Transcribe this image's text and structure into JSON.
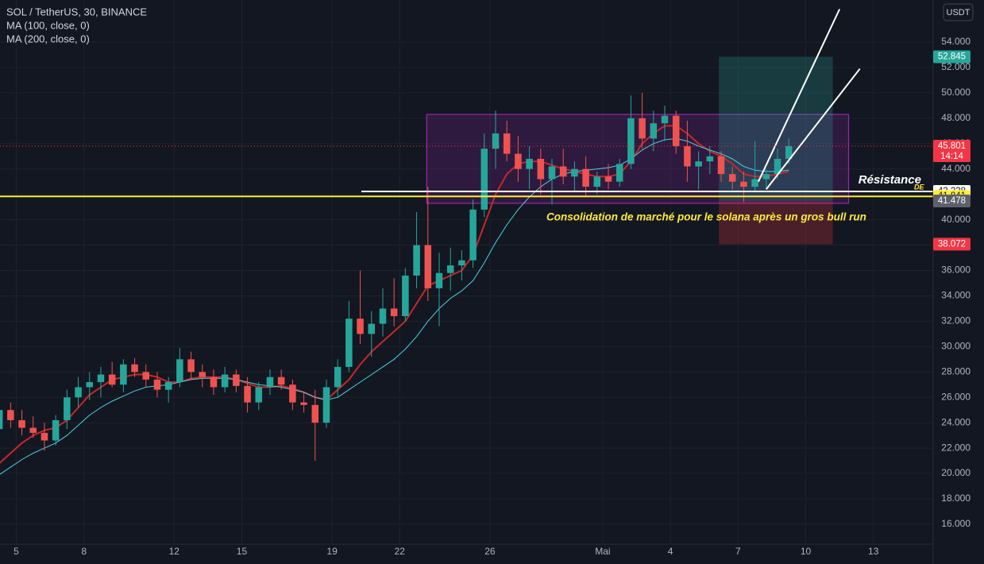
{
  "chart_data": {
    "type": "candlestick",
    "title": "SOL / TetherUS, 30, BINANCE",
    "currency_button": "USDT",
    "up_color": "#26a69a",
    "down_color": "#ef5350",
    "grid": true,
    "ylim": [
      14.43,
      57.32
    ],
    "yticks": [
      {
        "value": 16,
        "label": "16.000"
      },
      {
        "value": 18,
        "label": "18.000"
      },
      {
        "value": 20,
        "label": "20.000"
      },
      {
        "value": 22,
        "label": "22.000"
      },
      {
        "value": 24,
        "label": "24.000"
      },
      {
        "value": 26,
        "label": "26.000"
      },
      {
        "value": 28,
        "label": "28.000"
      },
      {
        "value": 30,
        "label": "30.000"
      },
      {
        "value": 32,
        "label": "32.000"
      },
      {
        "value": 34,
        "label": "34.000"
      },
      {
        "value": 36,
        "label": "36.000"
      },
      {
        "value": 38,
        "label": "38.000"
      },
      {
        "value": 40,
        "label": "40.000"
      },
      {
        "value": 42,
        "label": "42.000"
      },
      {
        "value": 44,
        "label": "44.000"
      },
      {
        "value": 46,
        "label": "46.000"
      },
      {
        "value": 48,
        "label": "48.000"
      },
      {
        "value": 50,
        "label": "50.000"
      },
      {
        "value": 52,
        "label": "52.000"
      },
      {
        "value": 54,
        "label": "54.000"
      }
    ],
    "xlim": [
      0.56,
      83.3
    ],
    "xticks": [
      {
        "value": 2,
        "label": "5"
      },
      {
        "value": 8,
        "label": "8"
      },
      {
        "value": 16,
        "label": "12"
      },
      {
        "value": 22,
        "label": "15"
      },
      {
        "value": 30,
        "label": "19"
      },
      {
        "value": 36,
        "label": "22"
      },
      {
        "value": 44,
        "label": "26"
      },
      {
        "value": 54,
        "label": "Mai"
      },
      {
        "value": 60,
        "label": "4"
      },
      {
        "value": 66,
        "label": "7"
      },
      {
        "value": 72,
        "label": "10"
      },
      {
        "value": 78,
        "label": "13"
      }
    ],
    "open": [
      23.5,
      25.0,
      24.2,
      23.6,
      23.2,
      22.6,
      24.2,
      26.0,
      26.8,
      27.2,
      27.8,
      27.0,
      28.6,
      28.0,
      27.4,
      26.6,
      27.2,
      29.0,
      28.0,
      27.6,
      26.8,
      27.8,
      26.9,
      25.6,
      26.8,
      27.6,
      27.0,
      25.6,
      25.4,
      24.0,
      26.8,
      28.4,
      32.2,
      31.0,
      31.8,
      33.0,
      32.4,
      35.6,
      38.0,
      34.6,
      35.8,
      36.4,
      36.8,
      40.8,
      45.6,
      46.8,
      45.2,
      44.0,
      44.8,
      43.2,
      44.2,
      43.4,
      44.0,
      42.6,
      43.4,
      43.0,
      44.4,
      48.0,
      46.4,
      47.6,
      48.2,
      45.8,
      44.2,
      44.6,
      45.0,
      43.6,
      43.0,
      42.6,
      43.2,
      43.6,
      44.8
    ],
    "high": [
      25.5,
      25.6,
      25.0,
      24.5,
      24.0,
      24.6,
      26.6,
      27.6,
      28.0,
      28.4,
      28.8,
      29.0,
      29.1,
      28.6,
      28.0,
      27.6,
      29.9,
      29.6,
      28.6,
      28.2,
      28.4,
      28.2,
      27.6,
      27.2,
      28.2,
      28.2,
      27.4,
      26.4,
      26.6,
      27.4,
      29.0,
      33.6,
      36.0,
      32.8,
      34.6,
      35.4,
      36.2,
      40.6,
      42.6,
      37.4,
      37.8,
      37.6,
      41.6,
      46.8,
      48.6,
      47.8,
      46.6,
      45.8,
      45.6,
      44.8,
      45.6,
      44.6,
      45.0,
      43.8,
      44.4,
      44.8,
      49.8,
      50.0,
      48.6,
      49.0,
      48.6,
      47.8,
      45.4,
      45.8,
      45.4,
      44.2,
      43.8,
      46.2,
      44.0,
      45.6,
      46.4
    ],
    "low": [
      22.8,
      23.6,
      23.0,
      22.8,
      21.8,
      22.2,
      23.5,
      25.2,
      25.8,
      26.0,
      26.8,
      26.4,
      27.6,
      26.8,
      26.0,
      25.6,
      26.8,
      27.4,
      26.8,
      26.2,
      26.4,
      26.4,
      24.8,
      25.0,
      26.2,
      26.6,
      25.0,
      24.8,
      21.0,
      23.6,
      26.0,
      28.0,
      30.2,
      29.2,
      30.8,
      31.6,
      32.0,
      34.6,
      33.6,
      31.6,
      34.4,
      35.2,
      36.2,
      40.2,
      44.0,
      44.6,
      43.0,
      42.4,
      42.0,
      41.2,
      42.8,
      42.2,
      41.8,
      42.0,
      42.4,
      42.6,
      44.0,
      45.6,
      45.4,
      46.2,
      45.2,
      43.0,
      42.4,
      43.6,
      43.0,
      42.4,
      41.4,
      42.2,
      42.4,
      43.2,
      44.4
    ],
    "close": [
      25.0,
      24.2,
      23.6,
      23.2,
      22.6,
      24.2,
      26.0,
      26.8,
      27.2,
      27.8,
      27.0,
      28.6,
      28.0,
      27.4,
      26.6,
      27.2,
      29.0,
      28.0,
      27.6,
      26.8,
      27.8,
      26.9,
      25.6,
      26.8,
      27.6,
      27.0,
      25.6,
      25.4,
      24.0,
      26.8,
      28.4,
      32.2,
      31.0,
      31.8,
      33.0,
      32.4,
      35.6,
      38.0,
      34.6,
      35.8,
      36.4,
      36.8,
      40.8,
      45.6,
      46.8,
      45.2,
      44.0,
      44.8,
      43.2,
      44.2,
      43.4,
      44.0,
      42.6,
      43.4,
      43.0,
      44.4,
      48.0,
      46.4,
      47.6,
      48.2,
      45.8,
      44.2,
      44.6,
      45.0,
      43.6,
      43.0,
      42.6,
      43.2,
      43.6,
      44.8,
      45.801
    ],
    "series": [
      {
        "name": "MA (100, close, 0)",
        "color": "#c62828",
        "values": [
          20.8,
          21.6,
          22.4,
          23.0,
          23.4,
          23.6,
          24.2,
          25.2,
          26.2,
          26.8,
          27.4,
          27.6,
          27.8,
          27.8,
          27.6,
          27.2,
          27.2,
          27.5,
          27.6,
          27.6,
          27.6,
          27.4,
          27.1,
          26.8,
          26.8,
          26.9,
          26.7,
          26.4,
          26.0,
          25.8,
          26.6,
          27.4,
          28.6,
          29.6,
          30.4,
          31.2,
          32.0,
          33.4,
          34.8,
          35.2,
          35.6,
          36.0,
          37.2,
          39.6,
          42.0,
          43.6,
          44.4,
          44.6,
          44.6,
          44.3,
          44.0,
          43.8,
          43.6,
          43.4,
          43.4,
          43.6,
          44.6,
          46.0,
          46.8,
          47.4,
          47.4,
          46.8,
          46.0,
          45.4,
          45.0,
          44.4,
          43.6,
          43.4,
          43.4,
          43.6,
          43.8
        ]
      },
      {
        "name": "MA (200, close, 0)",
        "color": "#4dd0e1",
        "values": [
          19.9,
          20.5,
          21.1,
          21.6,
          22.0,
          22.4,
          23.0,
          23.8,
          24.6,
          25.2,
          25.7,
          26.1,
          26.5,
          26.8,
          26.9,
          27.0,
          27.2,
          27.4,
          27.5,
          27.5,
          27.5,
          27.4,
          27.2,
          27.0,
          26.9,
          26.8,
          26.6,
          26.4,
          26.0,
          25.8,
          26.0,
          26.6,
          27.2,
          27.8,
          28.4,
          29.0,
          29.8,
          30.8,
          32.0,
          33.0,
          33.8,
          34.4,
          35.2,
          36.6,
          38.2,
          39.6,
          40.8,
          41.8,
          42.6,
          43.2,
          43.6,
          43.8,
          43.9,
          44.0,
          44.1,
          44.3,
          44.8,
          45.5,
          46.0,
          46.3,
          46.4,
          46.2,
          45.8,
          45.5,
          45.2,
          44.8,
          44.2,
          43.9,
          43.8,
          43.8,
          43.9
        ]
      }
    ],
    "countdown": "14:14",
    "last_price_color": "#f23645",
    "drawings": {
      "box": {
        "x": [
          38.4,
          75.8
        ],
        "y": [
          41.3,
          48.3
        ],
        "color": "#9c27b0"
      },
      "position": {
        "x": [
          64.3,
          74.4
        ],
        "target": 52.845,
        "entry": 41.478,
        "stop": 38.072,
        "target_color": "#26a69a",
        "stop_color": "#f23645",
        "entry_color": "#5d606b"
      },
      "levels": [
        {
          "value": 41.841,
          "color": "#ffeb3b",
          "text_color": "#131722"
        },
        {
          "value": 42.228,
          "color": "#ffffff",
          "text_color": "#131722",
          "x_start": 32.6
        }
      ],
      "trendlines": [
        {
          "x": [
            67.8,
            75.0
          ],
          "y": [
            43.0,
            56.6
          ]
        },
        {
          "x": [
            68.5,
            76.8
          ],
          "y": [
            42.4,
            51.9
          ]
        }
      ]
    },
    "annotations": {
      "resistance": "Résistance",
      "small_tag": "DE",
      "consolidation": "Consolidation de marché pour le solana après un gros bull run"
    }
  }
}
